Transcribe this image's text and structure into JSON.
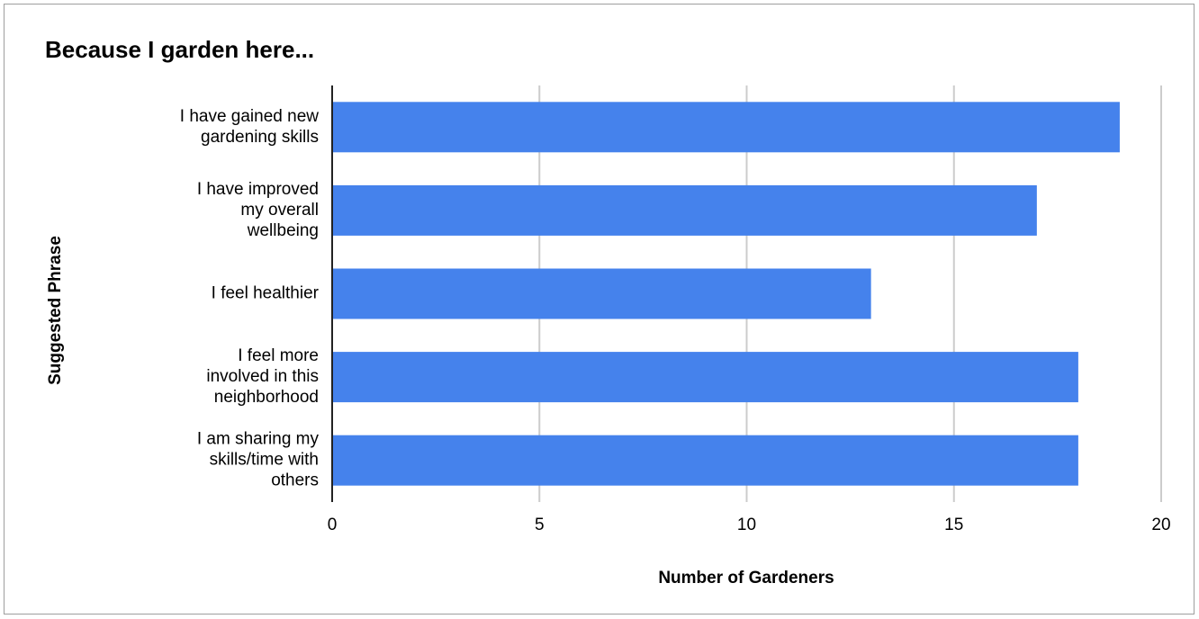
{
  "chart_data": {
    "type": "bar",
    "orientation": "horizontal",
    "title": "Because I garden here...",
    "x_label": "Number of Gardeners",
    "y_label": "Suggested Phrase",
    "categories": [
      [
        "I have gained new",
        "gardening skills"
      ],
      [
        "I have improved",
        "my overall",
        "wellbeing"
      ],
      [
        "I feel healthier"
      ],
      [
        "I feel more",
        "involved in this",
        "neighborhood"
      ],
      [
        "I am sharing my",
        "skills/time with",
        "others"
      ]
    ],
    "values": [
      19,
      17,
      13,
      18,
      18
    ],
    "color": "#4582ec",
    "xlim": [
      0,
      20
    ],
    "xticks": [
      0,
      5,
      10,
      15,
      20
    ],
    "grid": true
  }
}
